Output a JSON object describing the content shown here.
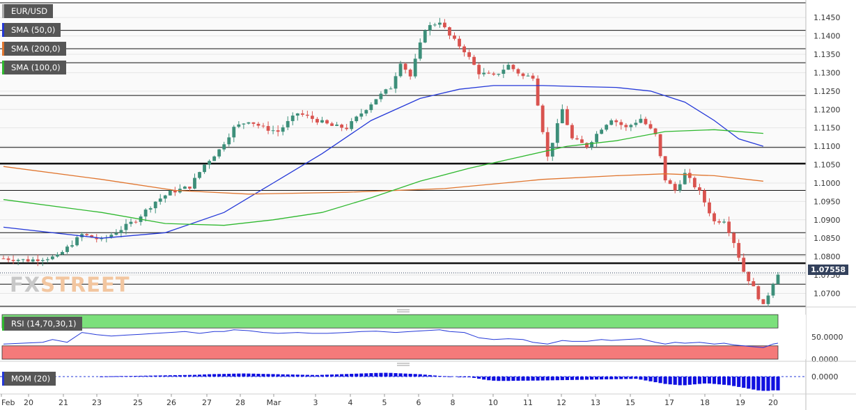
{
  "chart_data": {
    "type": "candlestick",
    "symbol": "EUR/USD",
    "last_price": "1.07558",
    "x_tick_labels": [
      "Feb",
      "20",
      "21",
      "23",
      "25",
      "26",
      "27",
      "28",
      "Mar",
      "3",
      "4",
      "5",
      "6",
      "8",
      "10",
      "11",
      "12",
      "13",
      "15",
      "17",
      "18",
      "19",
      "20"
    ],
    "y_tick_labels": [
      "1.1450",
      "1.1400",
      "1.1350",
      "1.1300",
      "1.1250",
      "1.1200",
      "1.1150",
      "1.1100",
      "1.1050",
      "1.1000",
      "1.0950",
      "1.0900",
      "1.0850",
      "1.0800",
      "1.0750",
      "1.0700"
    ],
    "ylim": [
      1.0665,
      1.149
    ],
    "horizontal_levels": [
      1.149,
      1.1415,
      1.1365,
      1.1327,
      1.1238,
      1.1097,
      1.1053,
      1.098,
      1.0865,
      1.0805,
      1.0782,
      1.0725,
      1.0665
    ],
    "bold_levels": [
      1.1053,
      1.0782
    ],
    "close_path": [
      [
        0,
        1.0795
      ],
      [
        5,
        1.079
      ],
      [
        11,
        1.08
      ],
      [
        16,
        1.086
      ],
      [
        20,
        1.0845
      ],
      [
        24,
        1.0875
      ],
      [
        27,
        1.09
      ],
      [
        31,
        1.095
      ],
      [
        34,
        1.0975
      ],
      [
        38,
        1.099
      ],
      [
        41,
        1.105
      ],
      [
        44,
        1.109
      ],
      [
        47,
        1.115
      ],
      [
        50,
        1.117
      ],
      [
        53,
        1.115
      ],
      [
        56,
        1.114
      ],
      [
        60,
        1.119
      ],
      [
        63,
        1.1175
      ],
      [
        67,
        1.1155
      ],
      [
        70,
        1.115
      ],
      [
        73,
        1.119
      ],
      [
        76,
        1.123
      ],
      [
        79,
        1.126
      ],
      [
        81,
        1.133
      ],
      [
        83,
        1.129
      ],
      [
        86,
        1.142
      ],
      [
        89,
        1.144
      ],
      [
        91,
        1.14
      ],
      [
        94,
        1.136
      ],
      [
        97,
        1.13
      ],
      [
        100,
        1.129
      ],
      [
        103,
        1.132
      ],
      [
        106,
        1.129
      ],
      [
        108,
        1.129
      ],
      [
        111,
        1.107
      ],
      [
        114,
        1.12
      ],
      [
        116,
        1.112
      ],
      [
        119,
        1.11
      ],
      [
        122,
        1.115
      ],
      [
        124,
        1.1175
      ],
      [
        127,
        1.115
      ],
      [
        130,
        1.1175
      ],
      [
        133,
        1.113
      ],
      [
        135,
        1.101
      ],
      [
        137,
        1.098
      ],
      [
        139,
        1.1025
      ],
      [
        142,
        1.0975
      ],
      [
        145,
        1.0895
      ],
      [
        147,
        1.09
      ],
      [
        149,
        1.084
      ],
      [
        151,
        1.076
      ],
      [
        153,
        1.0715
      ],
      [
        155,
        1.0665
      ],
      [
        157,
        1.073
      ],
      [
        158,
        1.07558
      ]
    ],
    "series": [
      {
        "name": "SMA (50,0)",
        "color": "#2438d8",
        "points": [
          [
            0,
            1.088
          ],
          [
            20,
            1.085
          ],
          [
            33,
            1.0865
          ],
          [
            45,
            1.092
          ],
          [
            55,
            1.1
          ],
          [
            65,
            1.108
          ],
          [
            75,
            1.117
          ],
          [
            85,
            1.123
          ],
          [
            93,
            1.1255
          ],
          [
            100,
            1.1265
          ],
          [
            110,
            1.1265
          ],
          [
            118,
            1.1262
          ],
          [
            125,
            1.126
          ],
          [
            132,
            1.125
          ],
          [
            139,
            1.122
          ],
          [
            145,
            1.117
          ],
          [
            150,
            1.112
          ],
          [
            155,
            1.11
          ]
        ]
      },
      {
        "name": "SMA (200,0)",
        "color": "#e0752e",
        "points": [
          [
            0,
            1.1045
          ],
          [
            20,
            1.101
          ],
          [
            35,
            1.098
          ],
          [
            50,
            1.097
          ],
          [
            70,
            1.0975
          ],
          [
            90,
            1.0985
          ],
          [
            110,
            1.101
          ],
          [
            125,
            1.102
          ],
          [
            135,
            1.1025
          ],
          [
            145,
            1.102
          ],
          [
            155,
            1.1005
          ]
        ]
      },
      {
        "name": "SMA (100,0)",
        "color": "#2eb82e",
        "points": [
          [
            0,
            1.0955
          ],
          [
            20,
            1.092
          ],
          [
            33,
            1.089
          ],
          [
            45,
            1.0885
          ],
          [
            55,
            1.09
          ],
          [
            65,
            1.092
          ],
          [
            75,
            1.096
          ],
          [
            85,
            1.1005
          ],
          [
            95,
            1.104
          ],
          [
            105,
            1.107
          ],
          [
            115,
            1.11
          ],
          [
            125,
            1.1115
          ],
          [
            135,
            1.114
          ],
          [
            145,
            1.1145
          ],
          [
            155,
            1.1135
          ]
        ]
      }
    ],
    "rsi": {
      "label": "RSI (14,70,30,1)",
      "ticks": [
        "50.0000",
        "0.0000"
      ],
      "upper": 70,
      "lower": 30,
      "points": [
        [
          0,
          34
        ],
        [
          8,
          38
        ],
        [
          10,
          44
        ],
        [
          13,
          38
        ],
        [
          16,
          60
        ],
        [
          19,
          55
        ],
        [
          22,
          52
        ],
        [
          25,
          54
        ],
        [
          28,
          56
        ],
        [
          31,
          58
        ],
        [
          34,
          60
        ],
        [
          37,
          62
        ],
        [
          40,
          58
        ],
        [
          43,
          62
        ],
        [
          45,
          62
        ],
        [
          47,
          66
        ],
        [
          50,
          64
        ],
        [
          53,
          60
        ],
        [
          56,
          58
        ],
        [
          60,
          60
        ],
        [
          63,
          58
        ],
        [
          66,
          58
        ],
        [
          70,
          60
        ],
        [
          73,
          62
        ],
        [
          76,
          63
        ],
        [
          80,
          60
        ],
        [
          83,
          62
        ],
        [
          86,
          64
        ],
        [
          89,
          66
        ],
        [
          91,
          62
        ],
        [
          94,
          60
        ],
        [
          97,
          48
        ],
        [
          100,
          44
        ],
        [
          103,
          46
        ],
        [
          106,
          44
        ],
        [
          108,
          38
        ],
        [
          111,
          34
        ],
        [
          114,
          42
        ],
        [
          116,
          40
        ],
        [
          119,
          40
        ],
        [
          122,
          44
        ],
        [
          124,
          42
        ],
        [
          127,
          44
        ],
        [
          130,
          46
        ],
        [
          133,
          38
        ],
        [
          135,
          34
        ],
        [
          137,
          38
        ],
        [
          139,
          36
        ],
        [
          142,
          38
        ],
        [
          145,
          34
        ],
        [
          147,
          36
        ],
        [
          149,
          32
        ],
        [
          151,
          30
        ],
        [
          153,
          28
        ],
        [
          155,
          26
        ],
        [
          157,
          34
        ],
        [
          158,
          36
        ]
      ]
    },
    "momentum": {
      "label": "MOM (20)",
      "ticks": [
        "0.0000"
      ],
      "values": [
        0,
        0,
        0,
        0,
        0,
        0,
        0,
        0,
        0,
        0,
        0,
        0,
        0,
        0,
        0,
        0,
        0,
        0,
        0,
        0,
        0.0004,
        0.0006,
        0.0008,
        0.001,
        0.0012,
        0.0012,
        0.0014,
        0.0016,
        0.0018,
        0.002,
        0.0022,
        0.0024,
        0.0026,
        0.0028,
        0.003,
        0.0032,
        0.0034,
        0.0036,
        0.0038,
        0.004,
        0.0045,
        0.005,
        0.0055,
        0.0058,
        0.006,
        0.0062,
        0.0065,
        0.0068,
        0.007,
        0.0072,
        0.007,
        0.0068,
        0.0065,
        0.0062,
        0.006,
        0.0058,
        0.0055,
        0.0052,
        0.005,
        0.0048,
        0.0045,
        0.0042,
        0.004,
        0.0038,
        0.0036,
        0.004,
        0.0044,
        0.0048,
        0.0052,
        0.0056,
        0.006,
        0.0064,
        0.0068,
        0.0072,
        0.0076,
        0.008,
        0.0084,
        0.0086,
        0.0088,
        0.0085,
        0.008,
        0.0075,
        0.007,
        0.0065,
        0.006,
        0.0055,
        0.0045,
        0.0035,
        0.0025,
        0.0015,
        0.001,
        0.0005,
        0,
        -0.0005,
        -0.001,
        -0.0015,
        -0.003,
        -0.005,
        -0.007,
        -0.0085,
        -0.0095,
        -0.01,
        -0.01,
        -0.01,
        -0.0098,
        -0.0096,
        -0.0095,
        -0.0094,
        -0.0093,
        -0.0092,
        -0.009,
        -0.0088,
        -0.0086,
        -0.0084,
        -0.0082,
        -0.008,
        -0.0078,
        -0.0076,
        -0.0074,
        -0.0072,
        -0.007,
        -0.0068,
        -0.0066,
        -0.0064,
        -0.0062,
        -0.006,
        -0.0058,
        -0.0056,
        -0.0054,
        -0.0052,
        -0.007,
        -0.009,
        -0.011,
        -0.013,
        -0.015,
        -0.017,
        -0.018,
        -0.019,
        -0.02,
        -0.02,
        -0.019,
        -0.018,
        -0.017,
        -0.016,
        -0.016,
        -0.017,
        -0.018,
        -0.019,
        -0.02,
        -0.022,
        -0.024,
        -0.026,
        -0.028,
        -0.03,
        -0.032,
        -0.033,
        -0.033,
        -0.032,
        -0.032
      ]
    }
  },
  "legend": {
    "symbol": "EUR/USD",
    "sma50": "SMA (50,0)",
    "sma200": "SMA (200,0)",
    "sma100": "SMA (100,0)"
  },
  "colors": {
    "up": "#3d8f7a",
    "down": "#d9534f",
    "grid": "#e6e6e6"
  },
  "watermark": {
    "part1": "FX",
    "part2": "STREET"
  }
}
